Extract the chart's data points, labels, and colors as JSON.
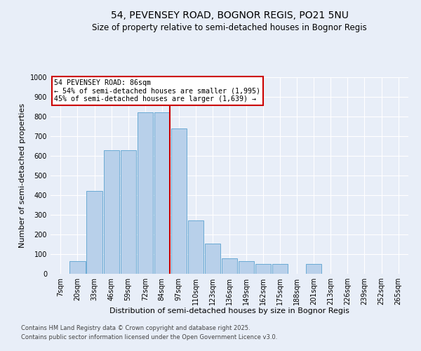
{
  "title": "54, PEVENSEY ROAD, BOGNOR REGIS, PO21 5NU",
  "subtitle": "Size of property relative to semi-detached houses in Bognor Regis",
  "xlabel": "Distribution of semi-detached houses by size in Bognor Regis",
  "ylabel": "Number of semi-detached properties",
  "categories": [
    "7sqm",
    "20sqm",
    "33sqm",
    "46sqm",
    "59sqm",
    "72sqm",
    "84sqm",
    "97sqm",
    "110sqm",
    "123sqm",
    "136sqm",
    "149sqm",
    "162sqm",
    "175sqm",
    "188sqm",
    "201sqm",
    "213sqm",
    "226sqm",
    "239sqm",
    "252sqm",
    "265sqm"
  ],
  "values": [
    0,
    65,
    420,
    630,
    630,
    820,
    820,
    740,
    270,
    155,
    80,
    65,
    50,
    50,
    0,
    50,
    0,
    0,
    0,
    0,
    0
  ],
  "bar_color": "#b8d0ea",
  "bar_edge_color": "#6aaad4",
  "vline_color": "#cc0000",
  "annotation_title": "54 PEVENSEY ROAD: 86sqm",
  "annotation_line1": "← 54% of semi-detached houses are smaller (1,995)",
  "annotation_line2": "45% of semi-detached houses are larger (1,639) →",
  "annotation_box_facecolor": "white",
  "annotation_box_edgecolor": "#cc0000",
  "footer1": "Contains HM Land Registry data © Crown copyright and database right 2025.",
  "footer2": "Contains public sector information licensed under the Open Government Licence v3.0.",
  "background_color": "#e8eef8",
  "ylim": [
    0,
    1000
  ],
  "yticks": [
    0,
    100,
    200,
    300,
    400,
    500,
    600,
    700,
    800,
    900,
    1000
  ],
  "title_fontsize": 10,
  "subtitle_fontsize": 8.5,
  "axis_label_fontsize": 8,
  "tick_fontsize": 7,
  "footer_fontsize": 6
}
